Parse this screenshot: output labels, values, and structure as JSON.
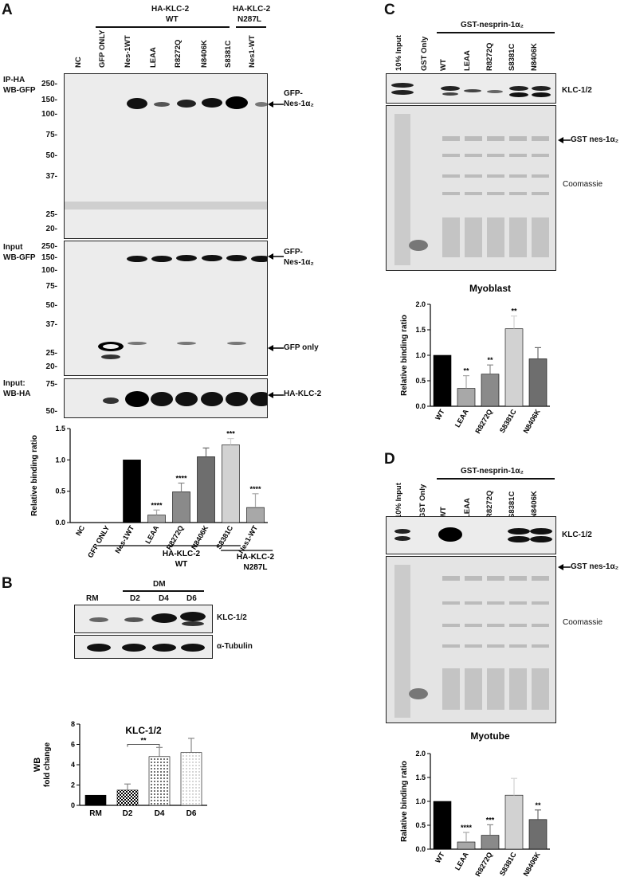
{
  "panelA": {
    "label": "A",
    "group_header_wt": "HA-KLC-2",
    "group_header_wt2": "WT",
    "group_header_mut": "HA-KLC-2",
    "group_header_mut2": "N287L",
    "lanes": [
      "NC",
      "GFP ONLY",
      "Nes-1WT",
      "LEAA",
      "R8272Q",
      "N8406K",
      "S8381C",
      "Nes1-WT"
    ],
    "blot1_label1": "IP-HA",
    "blot1_label2": "WB-GFP",
    "blot1_mw": [
      "250-",
      "150-",
      "100-",
      "75-",
      "50-",
      "37-",
      "25-",
      "20-"
    ],
    "blot1_arrow1": "GFP-",
    "blot1_arrow2": "Nes-1α₂",
    "blot2_label1": "Input",
    "blot2_label2": "WB-GFP",
    "blot2_mw": [
      "250-",
      "150-",
      "100-",
      "75-",
      "50-",
      "37-",
      "25-",
      "20-"
    ],
    "blot2_arrow1": "GFP-",
    "blot2_arrow2": "Nes-1α₂",
    "blot2_arrow3": "GFP only",
    "blot3_label1": "Input:",
    "blot3_label2": "WB-HA",
    "blot3_mw": [
      "75-",
      "50-"
    ],
    "blot3_arrow": "HA-KLC-2"
  },
  "panelB": {
    "label": "B",
    "lane_rm": "RM",
    "dm": "DM",
    "lanes": [
      "D2",
      "D4",
      "D6"
    ],
    "blot1": "KLC-1/2",
    "blot2": "α-Tubulin"
  },
  "panelC": {
    "label": "C",
    "header": "GST-nesprin-1α₂",
    "lanes": [
      "10% Input",
      "GST Only",
      "WT",
      "LEAA",
      "R8272Q",
      "S8381C",
      "N8406K"
    ],
    "blot_label": "KLC-1/2",
    "gel_arrow": "GST nes-1α₂",
    "gel_label": "Coomassie"
  },
  "panelD": {
    "label": "D",
    "header": "GST-nesprin-1α₂",
    "lanes": [
      "10% Input",
      "GST Only",
      "WT",
      "LEAA",
      "R8272Q",
      "S8381C",
      "N8406K"
    ],
    "blot_label": "KLC-1/2",
    "gel_arrow": "GST nes-1α₂",
    "gel_label": "Coomassie"
  },
  "chart_data": [
    {
      "type": "bar",
      "panel": "A",
      "ylabel": "Relative binding ratio",
      "ylim": [
        0,
        1.5
      ],
      "yticks": [
        "0.0",
        "0.5",
        "1.0",
        "1.5"
      ],
      "categories": [
        "NC",
        "GFP ONLY",
        "Nes-1WT",
        "LEAA",
        "R8272Q",
        "N8406K",
        "S8381C",
        "Nes1-WT"
      ],
      "values": [
        0,
        0,
        1.0,
        0.12,
        0.49,
        1.05,
        1.24,
        0.24
      ],
      "errors": [
        0,
        0,
        0,
        0.08,
        0.14,
        0.14,
        0.1,
        0.22
      ],
      "significance": [
        "",
        "",
        "",
        "****",
        "****",
        "",
        "***",
        "****"
      ],
      "colors": [
        "#000000",
        "#000000",
        "#000000",
        "#a8a8a8",
        "#8a8a8a",
        "#6e6e6e",
        "#d2d2d2",
        "#a8a8a8"
      ],
      "group_wt": "HA-KLC-2",
      "group_wt2": "WT",
      "group_mut": "HA-KLC-2",
      "group_mut2": "N287L"
    },
    {
      "type": "bar",
      "panel": "B",
      "title": "KLC-1/2",
      "ylabel_line1": "WB",
      "ylabel_line2": "fold change",
      "ylim": [
        0,
        8
      ],
      "yticks": [
        "0",
        "2",
        "4",
        "6",
        "8"
      ],
      "categories": [
        "RM",
        "D2",
        "D4",
        "D6"
      ],
      "values": [
        1.0,
        1.5,
        4.8,
        5.2
      ],
      "errors": [
        0,
        0.6,
        0.9,
        1.4
      ],
      "significance_bracket": {
        "from": "D2",
        "to": "D4",
        "label": "**"
      }
    },
    {
      "type": "bar",
      "panel": "C",
      "title": "Myoblast",
      "ylabel": "Relative binding ratio",
      "ylim": [
        0,
        2.0
      ],
      "yticks": [
        "0.0",
        "0.5",
        "1.0",
        "1.5",
        "2.0"
      ],
      "categories": [
        "WT",
        "LEAA",
        "R8272Q",
        "S8381C",
        "N8406K"
      ],
      "values": [
        1.0,
        0.35,
        0.63,
        1.52,
        0.93
      ],
      "errors": [
        0,
        0.25,
        0.18,
        0.25,
        0.22
      ],
      "significance": [
        "",
        "**",
        "**",
        "**",
        ""
      ],
      "colors": [
        "#000000",
        "#a8a8a8",
        "#8a8a8a",
        "#d2d2d2",
        "#6e6e6e"
      ]
    },
    {
      "type": "bar",
      "panel": "D",
      "title": "Myotube",
      "ylabel": "Ralative binding ratio",
      "ylim": [
        0,
        2.0
      ],
      "yticks": [
        "0.0",
        "0.5",
        "1.0",
        "1.5",
        "2.0"
      ],
      "categories": [
        "WT",
        "LEAA",
        "R8272Q",
        "S8381C",
        "N8406K"
      ],
      "values": [
        1.0,
        0.15,
        0.29,
        1.13,
        0.62
      ],
      "errors": [
        0,
        0.2,
        0.22,
        0.35,
        0.2
      ],
      "significance": [
        "",
        "****",
        "***",
        "",
        "**"
      ],
      "colors": [
        "#000000",
        "#a8a8a8",
        "#8a8a8a",
        "#d2d2d2",
        "#6e6e6e"
      ]
    }
  ]
}
